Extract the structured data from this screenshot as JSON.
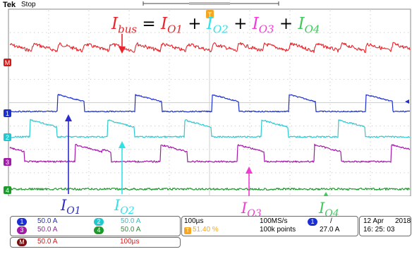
{
  "header": {
    "brand": "Tek",
    "acquisition": "Stop"
  },
  "equation": {
    "lhs": "I",
    "lhs_sub": "bus",
    "eq": "=",
    "terms": [
      {
        "sym": "I",
        "sub": "O1",
        "color": "#e8232a"
      },
      {
        "sym": "I",
        "sub": "O2",
        "color": "#2fe2ea"
      },
      {
        "sym": "I",
        "sub": "O3",
        "color": "#f23bd3"
      },
      {
        "sym": "I",
        "sub": "O4",
        "color": "#3dc95c"
      }
    ],
    "plus": "+",
    "lhs_color": "#e8232a"
  },
  "labels": {
    "io1": {
      "sym": "I",
      "sub": "O1",
      "color": "#2b2bd0"
    },
    "io2": {
      "sym": "I",
      "sub": "O2",
      "color": "#2fe2ea"
    },
    "io3": {
      "sym": "I",
      "sub": "O3",
      "color": "#f23bd3"
    },
    "io4": {
      "sym": "I",
      "sub": "O4",
      "color": "#3dc95c"
    }
  },
  "markers": {
    "m": "M",
    "ch1": "1",
    "ch2": "2",
    "ch3": "3",
    "ch4": "4",
    "trigger": "T"
  },
  "channels": [
    {
      "id": "1",
      "scale": "50.0 A",
      "color": "#1c2fd0"
    },
    {
      "id": "2",
      "scale": "50.0 A",
      "color": "#22c7d0"
    },
    {
      "id": "3",
      "scale": "50.0 A",
      "color": "#a21aa8"
    },
    {
      "id": "4",
      "scale": "50.0 A",
      "color": "#1e9a2c"
    }
  ],
  "math": {
    "id": "M",
    "scale": "50.0 A",
    "timebase": "100µs",
    "color": "#d21a1a"
  },
  "horizontal": {
    "timebase": "100µs",
    "trigger_pos": "51.40 %",
    "sample_rate": "100MS/s",
    "record": "100k points"
  },
  "trigger": {
    "source": "1",
    "slope": "/",
    "level": "27.0 A"
  },
  "datetime": {
    "date": "12 Apr",
    "year": "2018",
    "time": "16: 25: 03"
  },
  "colors": {
    "math": "#e8232a",
    "ch1": "#1c2fd0",
    "ch2": "#2fc9d2",
    "ch3": "#a21aa8",
    "ch4": "#1e9a2c",
    "grid": "#bdbdbd"
  },
  "waveforms": {
    "math": {
      "shape": "sawtooth-ripple",
      "periods": 11
    },
    "ch1": {
      "shape": "periodic-pulse",
      "periods": 4
    },
    "ch2": {
      "shape": "periodic-pulse",
      "periods": 4
    },
    "ch3": {
      "shape": "periodic-pulse",
      "periods": 4
    },
    "ch4": {
      "shape": "flat-noise"
    }
  }
}
